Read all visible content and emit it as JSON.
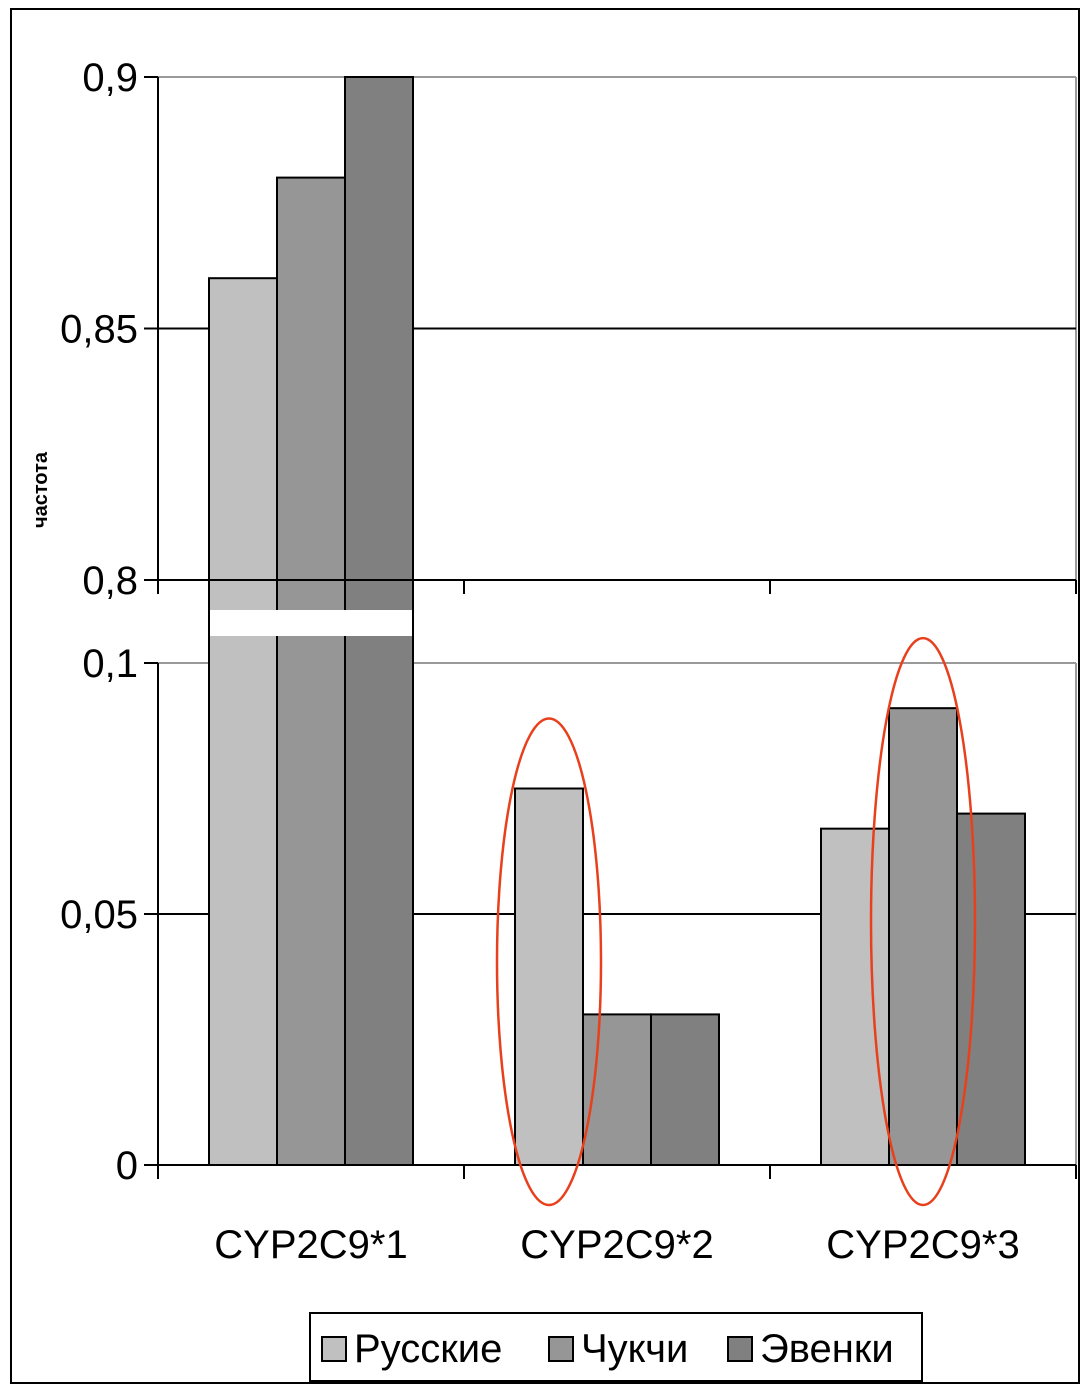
{
  "chart_data": {
    "type": "bar",
    "broken_axis": true,
    "title": "",
    "xlabel": "",
    "ylabel": "частота",
    "categories": [
      "CYP2C9*1",
      "CYP2C9*2",
      "CYP2C9*3"
    ],
    "series": [
      {
        "name": "Русские",
        "color": "#c0c0c0",
        "values": [
          0.86,
          0.075,
          0.067
        ]
      },
      {
        "name": "Чукчи",
        "color": "#969696",
        "values": [
          0.88,
          0.03,
          0.091
        ]
      },
      {
        "name": "Эвенки",
        "color": "#808080",
        "values": [
          0.9,
          0.03,
          0.07
        ]
      }
    ],
    "upper_panel": {
      "ylim": [
        0.8,
        0.9
      ],
      "yticks": [
        "0,8",
        "0,85",
        "0,9"
      ]
    },
    "lower_panel": {
      "ylim": [
        0,
        0.1
      ],
      "yticks": [
        "0",
        "0,05",
        "0,1"
      ]
    },
    "highlights": [
      {
        "category": "CYP2C9*2",
        "series": "Русские",
        "color": "#e8401c"
      },
      {
        "category": "CYP2C9*3",
        "series": "Чукчи",
        "color": "#e8401c"
      }
    ],
    "grid": true,
    "legend_position": "bottom"
  }
}
